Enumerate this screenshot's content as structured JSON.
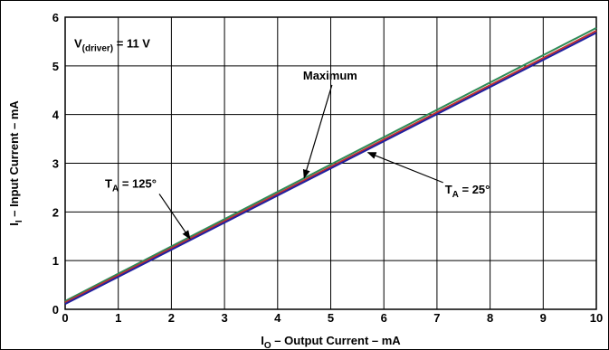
{
  "chart_data": {
    "type": "line",
    "xlabel": {
      "main": "I",
      "sub": "O",
      "rest": " – Output Current – mA"
    },
    "ylabel": {
      "main": "I",
      "sub": "I",
      "rest": " – Input Current – mA"
    },
    "xlim": [
      0,
      10
    ],
    "ylim": [
      0,
      6
    ],
    "x_ticks": [
      "0",
      "1",
      "2",
      "3",
      "4",
      "5",
      "6",
      "7",
      "8",
      "9",
      "10"
    ],
    "y_ticks": [
      "0",
      "1",
      "2",
      "3",
      "4",
      "5",
      "6"
    ],
    "grid": true,
    "series": [
      {
        "name": "Maximum",
        "color": "#2e8b57",
        "x": [
          0,
          10
        ],
        "y": [
          0.17,
          5.78
        ]
      },
      {
        "name": "T_A = 25°",
        "color": "#c03030",
        "x": [
          0,
          10
        ],
        "y": [
          0.14,
          5.72
        ]
      },
      {
        "name": "T_A = 125°",
        "color": "#2020a0",
        "x": [
          0,
          10
        ],
        "y": [
          0.11,
          5.68
        ]
      }
    ],
    "annotations": {
      "driver": {
        "main": "V",
        "sub": "(driver)",
        "rest": " = 11 V"
      },
      "maximum": {
        "text": "Maximum",
        "x": 5.5,
        "y": 4.72,
        "arrow_to": [
          4.5,
          2.7
        ]
      },
      "ta125": {
        "main": "T",
        "sub": "A",
        "rest": " = 125°",
        "x": 0.75,
        "y": 2.5,
        "arrow_to": [
          2.35,
          1.45
        ]
      },
      "ta25": {
        "main": "T",
        "sub": "A",
        "rest": " = 25°",
        "x": 7.15,
        "y": 2.38,
        "arrow_to": [
          5.7,
          3.22
        ]
      }
    }
  }
}
